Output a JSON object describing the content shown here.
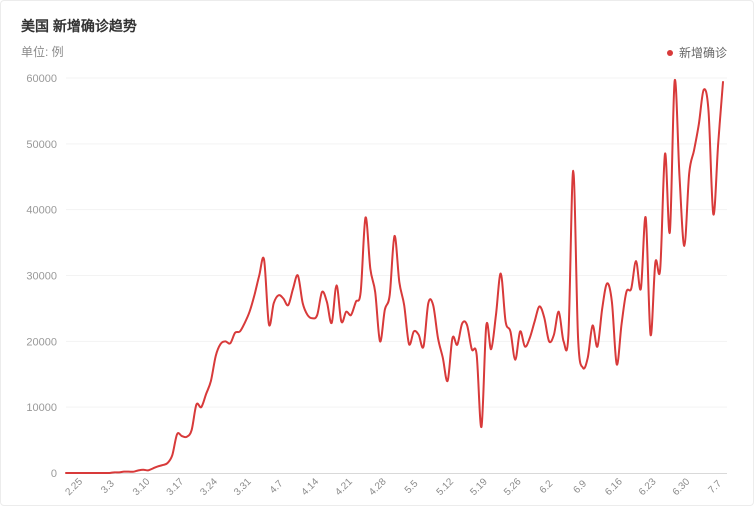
{
  "header": {
    "title": "美国 新增确诊趋势",
    "unit_label": "单位: 例"
  },
  "legend": {
    "label": "新增确诊"
  },
  "colors": {
    "series": "#d83a3a",
    "grid": "#f3f3f3",
    "axis": "#d9d9d9"
  },
  "chart_data": {
    "type": "line",
    "title": "美国 新增确诊趋势",
    "ylabel": "单位: 例",
    "xlabel": "",
    "ylim": [
      0,
      60000
    ],
    "yticks": [
      0,
      10000,
      20000,
      30000,
      40000,
      50000,
      60000
    ],
    "x_tick_labels": [
      "2.25",
      "3.3",
      "3.10",
      "3.17",
      "3.24",
      "3.31",
      "4.7",
      "4.14",
      "4.21",
      "4.28",
      "5.5",
      "5.12",
      "5.19",
      "5.26",
      "6.2",
      "6.9",
      "6.16",
      "6.23",
      "6.30",
      "7.7"
    ],
    "grid": true,
    "legend_position": "top-right",
    "series": [
      {
        "name": "新增确诊",
        "values": [
          0,
          0,
          0,
          0,
          0,
          0,
          0,
          0,
          0,
          0,
          100,
          100,
          200,
          200,
          200,
          400,
          500,
          400,
          700,
          1000,
          1200,
          1500,
          2700,
          5900,
          5600,
          5500,
          6500,
          10400,
          10000,
          12000,
          14000,
          17800,
          19600,
          20000,
          19700,
          21300,
          21500,
          22800,
          24500,
          27000,
          30000,
          32400,
          22600,
          25800,
          27000,
          26500,
          25500,
          28000,
          30000,
          25800,
          24000,
          23500,
          24000,
          27500,
          26000,
          22800,
          28500,
          23000,
          24500,
          24000,
          26000,
          27500,
          38800,
          31000,
          27500,
          20000,
          24800,
          27000,
          36000,
          29000,
          25500,
          19600,
          21500,
          21000,
          19200,
          25800,
          25500,
          20500,
          17500,
          14000,
          20500,
          19500,
          22700,
          22500,
          18800,
          18000,
          7000,
          22400,
          18800,
          24000,
          30300,
          23000,
          21500,
          17200,
          21500,
          19200,
          20500,
          23000,
          25300,
          23600,
          20000,
          21000,
          24500,
          20000,
          21000,
          45900,
          20500,
          16000,
          17500,
          22400,
          19200,
          25000,
          28800,
          26000,
          16500,
          22600,
          27500,
          28000,
          32200,
          28000,
          38800,
          21000,
          32000,
          31000,
          48500,
          36600,
          59600,
          45000,
          34500,
          45500,
          49000,
          53000,
          58200,
          55000,
          39300,
          50000,
          59400
        ]
      }
    ]
  }
}
